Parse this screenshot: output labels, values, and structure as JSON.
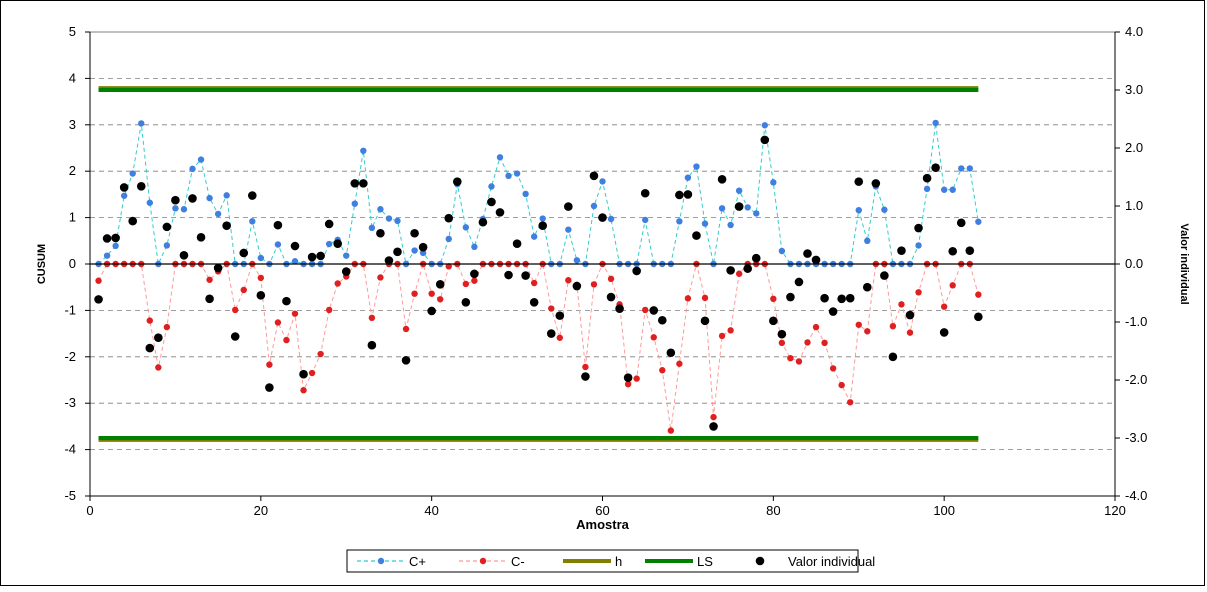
{
  "chart_data": {
    "type": "line",
    "title": "",
    "xlabel": "Amostra",
    "ylabel": "CUSUM",
    "y2label": "Valor individual",
    "xlim": [
      0,
      120
    ],
    "ylim": [
      -5,
      5
    ],
    "y2lim": [
      -4.0,
      4.0
    ],
    "xticks": [
      "0",
      "20",
      "40",
      "60",
      "80",
      "100",
      "120"
    ],
    "yticks": [
      "-5",
      "-4",
      "-3",
      "-2",
      "-1",
      "0",
      "1",
      "2",
      "3",
      "4",
      "5"
    ],
    "y2ticks": [
      "-4.0",
      "-3.0",
      "-2.0",
      "-1.0",
      "0.0",
      "1.0",
      "2.0",
      "3.0",
      "4.0"
    ],
    "grid": "horizontal-dashed",
    "legend_position": "bottom",
    "series": [
      {
        "name": "C+",
        "axis": "left",
        "color": "#3f7fe0",
        "line": "dashed",
        "line_color": "#33cccc",
        "x": [
          1,
          2,
          3,
          4,
          5,
          6,
          7,
          8,
          9,
          10,
          11,
          12,
          13,
          14,
          15,
          16,
          17,
          18,
          19,
          20,
          21,
          22,
          23,
          24,
          25,
          26,
          27,
          28,
          29,
          30,
          31,
          32,
          33,
          34,
          35,
          36,
          37,
          38,
          39,
          40,
          41,
          42,
          43,
          44,
          45,
          46,
          47,
          48,
          49,
          50,
          51,
          52,
          53,
          54,
          55,
          56,
          57,
          58,
          59,
          60,
          61,
          62,
          63,
          64,
          65,
          66,
          67,
          68,
          69,
          70,
          71,
          72,
          73,
          74,
          75,
          76,
          77,
          78,
          79,
          80,
          81,
          82,
          83,
          84,
          85,
          86,
          87,
          88,
          89,
          90,
          91,
          92,
          93,
          94,
          95,
          96,
          97,
          98,
          99,
          100,
          101,
          102,
          103,
          104
        ],
        "y": [
          0,
          0.18,
          0.39,
          1.47,
          1.95,
          3.03,
          1.32,
          0,
          0.4,
          1.2,
          1.18,
          2.05,
          2.25,
          1.42,
          1.08,
          1.48,
          0,
          0,
          0.92,
          0.13,
          0,
          0.42,
          0,
          0.06,
          0,
          0,
          0,
          0.43,
          0.52,
          0.18,
          1.3,
          2.44,
          0.78,
          1.18,
          0.98,
          0.93,
          0,
          0.29,
          0.24,
          0,
          0,
          0.54,
          1.72,
          0.79,
          0.37,
          0.97,
          1.67,
          2.3,
          1.9,
          1.95,
          1.51,
          0.59,
          0.98,
          0,
          0,
          0.74,
          0.08,
          0,
          1.25,
          1.78,
          0.97,
          0,
          0,
          0,
          0.95,
          0,
          0,
          0,
          0.92,
          1.86,
          2.1,
          0.87,
          0,
          1.2,
          0.84,
          1.58,
          1.22,
          1.09,
          2.99,
          1.76,
          0.28,
          0,
          0,
          0,
          0,
          0,
          0,
          0,
          0,
          1.16,
          0.5,
          1.67,
          1.17,
          0,
          0,
          0,
          0.4,
          1.62,
          3.04,
          1.6,
          1.6,
          2.06,
          2.06,
          0.91
        ]
      },
      {
        "name": "C-",
        "axis": "left",
        "color": "#e02020",
        "line": "dashed",
        "line_color": "#ff9999",
        "x": [
          1,
          2,
          3,
          4,
          5,
          6,
          7,
          8,
          9,
          10,
          11,
          12,
          13,
          14,
          15,
          16,
          17,
          18,
          19,
          20,
          21,
          22,
          23,
          24,
          25,
          26,
          27,
          28,
          29,
          30,
          31,
          32,
          33,
          34,
          35,
          36,
          37,
          38,
          39,
          40,
          41,
          42,
          43,
          44,
          45,
          46,
          47,
          48,
          49,
          50,
          51,
          52,
          53,
          54,
          55,
          56,
          57,
          58,
          59,
          60,
          61,
          62,
          63,
          64,
          65,
          66,
          67,
          68,
          69,
          70,
          71,
          72,
          73,
          74,
          75,
          76,
          77,
          78,
          79,
          80,
          81,
          82,
          83,
          84,
          85,
          86,
          87,
          88,
          89,
          90,
          91,
          92,
          93,
          94,
          95,
          96,
          97,
          98,
          99,
          100,
          101,
          102,
          103,
          104
        ],
        "y": [
          -0.36,
          0,
          0,
          0,
          0,
          0,
          -1.22,
          -2.23,
          -1.36,
          0,
          0,
          0,
          0,
          -0.34,
          -0.16,
          0,
          -0.99,
          -0.56,
          0,
          -0.3,
          -2.17,
          -1.26,
          -1.64,
          -1.07,
          -2.72,
          -2.35,
          -1.94,
          -0.99,
          -0.42,
          -0.27,
          0,
          0,
          -1.16,
          -0.29,
          0,
          0,
          -1.4,
          -0.64,
          0,
          -0.64,
          -0.76,
          -0.05,
          0,
          -0.43,
          -0.36,
          0,
          0,
          0,
          0,
          0,
          0,
          -0.41,
          0,
          -0.96,
          -1.59,
          -0.35,
          -0.45,
          -2.22,
          -0.44,
          0,
          -0.32,
          -0.87,
          -2.59,
          -2.47,
          -0.99,
          -1.58,
          -2.29,
          -3.59,
          -2.15,
          -0.74,
          0,
          -0.73,
          -3.3,
          -1.55,
          -1.43,
          -0.21,
          0,
          0,
          0,
          -0.75,
          -1.7,
          -2.03,
          -2.1,
          -1.69,
          -1.36,
          -1.7,
          -2.25,
          -2.61,
          -2.98,
          -1.31,
          -1.45,
          0,
          0,
          -1.34,
          -0.87,
          -1.48,
          -0.61,
          0,
          0,
          -0.92,
          -0.46,
          0,
          0,
          -0.66
        ]
      },
      {
        "name": "h",
        "axis": "left",
        "color": "#808000",
        "x": [
          1,
          104
        ],
        "y": [
          3.8,
          3.8
        ],
        "x2": [
          1,
          104
        ],
        "y2": [
          -3.8,
          -3.8
        ]
      },
      {
        "name": "LS",
        "axis": "right",
        "color": "#008000",
        "x": [
          1,
          104
        ],
        "y": [
          3.0,
          3.0
        ],
        "x2": [
          1,
          104
        ],
        "y2": [
          -3.0,
          -3.0
        ]
      },
      {
        "name": "Valor individual",
        "axis": "right",
        "color": "#000000",
        "line": "none",
        "x": [
          1,
          2,
          3,
          4,
          5,
          6,
          7,
          8,
          9,
          10,
          11,
          12,
          13,
          14,
          15,
          16,
          17,
          18,
          19,
          20,
          21,
          22,
          23,
          24,
          25,
          26,
          27,
          28,
          29,
          30,
          31,
          32,
          33,
          34,
          35,
          36,
          37,
          38,
          39,
          40,
          41,
          42,
          43,
          44,
          45,
          46,
          47,
          48,
          49,
          50,
          51,
          52,
          53,
          54,
          55,
          56,
          57,
          58,
          59,
          60,
          61,
          62,
          63,
          64,
          65,
          66,
          67,
          68,
          69,
          70,
          71,
          72,
          73,
          74,
          75,
          76,
          77,
          78,
          79,
          80,
          81,
          82,
          83,
          84,
          85,
          86,
          87,
          88,
          89,
          90,
          91,
          92,
          93,
          94,
          95,
          96,
          97,
          98,
          99,
          100,
          101,
          102,
          103,
          104
        ],
        "y": [
          -0.61,
          0.44,
          0.45,
          1.32,
          0.74,
          1.34,
          -1.45,
          -1.27,
          0.64,
          1.1,
          0.15,
          1.13,
          0.46,
          -0.6,
          -0.07,
          0.66,
          -1.25,
          0.19,
          1.18,
          -0.54,
          -2.13,
          0.67,
          -0.64,
          0.31,
          -1.9,
          0.12,
          0.14,
          0.69,
          0.35,
          -0.13,
          1.39,
          1.39,
          -1.4,
          0.53,
          0.06,
          0.21,
          -1.66,
          0.53,
          0.29,
          -0.81,
          -0.35,
          0.79,
          1.42,
          -0.66,
          -0.17,
          0.72,
          1.07,
          0.89,
          -0.19,
          0.35,
          -0.2,
          -0.66,
          0.66,
          -1.2,
          -0.89,
          0.99,
          -0.38,
          -1.94,
          1.52,
          0.8,
          -0.57,
          -0.77,
          -1.96,
          -0.12,
          1.22,
          -0.8,
          -0.97,
          -1.53,
          1.19,
          1.2,
          0.49,
          -0.98,
          -2.8,
          1.46,
          -0.11,
          0.99,
          -0.08,
          0.1,
          2.14,
          -0.98,
          -1.21,
          -0.57,
          -0.31,
          0.18,
          0.07,
          -0.59,
          -0.82,
          -0.6,
          -0.59,
          1.42,
          -0.4,
          1.39,
          -0.2,
          -1.6,
          0.23,
          -0.88,
          0.62,
          1.48,
          1.66,
          -1.18,
          0.22,
          0.71,
          0.23,
          -0.91
        ]
      }
    ]
  }
}
